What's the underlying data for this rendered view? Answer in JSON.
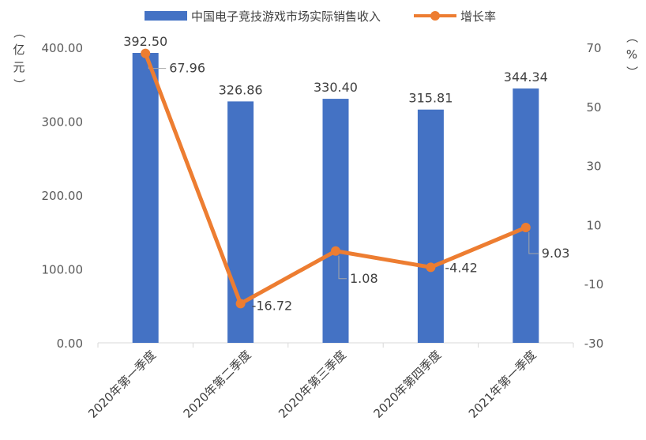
{
  "chart_data": {
    "type": "bar+line",
    "categories": [
      "2020年第一季度",
      "2020年第二季度",
      "2020年第三季度",
      "2020年第四季度",
      "2021年第一季度"
    ],
    "series": [
      {
        "name": "中国电子竞技游戏市场实际销售收入",
        "type": "bar",
        "axis": "left",
        "color": "#4472C4",
        "values": [
          392.5,
          326.86,
          330.4,
          315.81,
          344.34
        ],
        "labels": [
          "392.50",
          "326.86",
          "330.40",
          "315.81",
          "344.34"
        ]
      },
      {
        "name": "增长率",
        "type": "line",
        "axis": "right",
        "color": "#ED7D31",
        "values": [
          67.96,
          -16.72,
          1.08,
          -4.42,
          9.03
        ],
        "labels": [
          "67.96",
          "-16.72",
          "1.08",
          "-4.42",
          "9.03"
        ]
      }
    ],
    "y_left": {
      "label": "（亿元）",
      "range": [
        0,
        400
      ],
      "ticks": [
        "0.00",
        "100.00",
        "200.00",
        "300.00",
        "400.00"
      ]
    },
    "y_right": {
      "label": "（%）",
      "range": [
        -30,
        70
      ],
      "ticks": [
        "-30",
        "-10",
        "10",
        "30",
        "50",
        "70"
      ]
    },
    "legend_position": "top",
    "grid": false
  }
}
